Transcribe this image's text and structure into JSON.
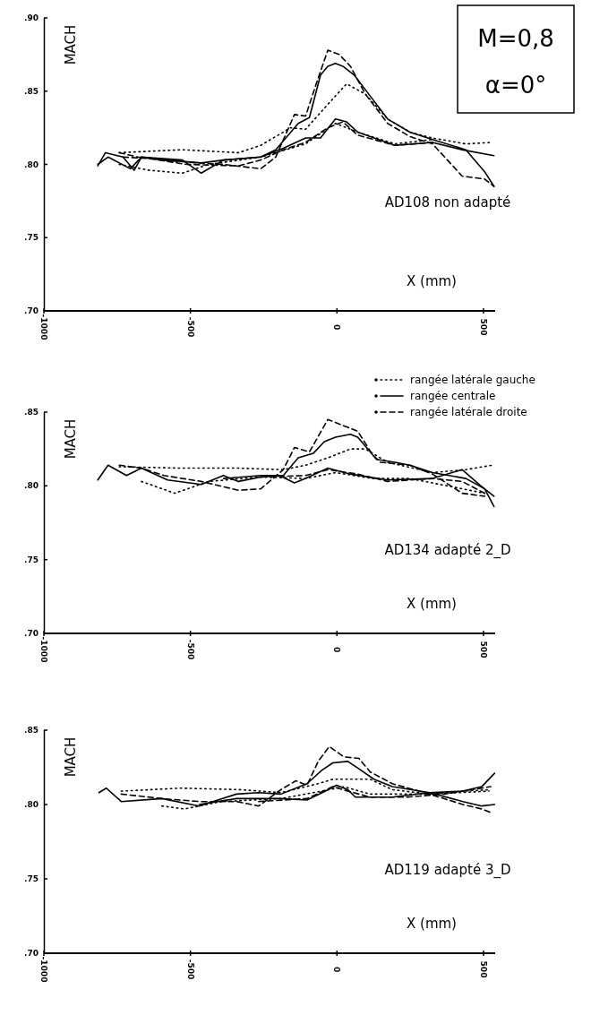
{
  "chart_data": [
    {
      "type": "line",
      "xlabel": "X (mm)",
      "ylabel": "MACH",
      "annotations": [
        "AD108  non adapté",
        "M=0,8",
        "α=0°"
      ],
      "xlim": [
        -1000,
        540
      ],
      "xticks": [
        -1000,
        -500,
        0,
        500
      ],
      "ylim": [
        0.7,
        0.9
      ],
      "yticks": [
        {
          "value": 0.7,
          "label": ".70"
        },
        {
          "value": 0.75,
          "label": ".75"
        },
        {
          "value": 0.8,
          "label": ".80"
        },
        {
          "value": 0.85,
          "label": ".85"
        },
        {
          "value": 0.9,
          "label": ".90"
        }
      ],
      "grid": false,
      "legend": false,
      "series": [
        {
          "color": "#000000",
          "line_style": "dotted",
          "x": [
            -743,
            -527,
            -336,
            -260,
            -158,
            -107,
            -31,
            33,
            97,
            173,
            249,
            326,
            440,
            529
          ],
          "values": [
            0.808,
            0.81,
            0.808,
            0.813,
            0.825,
            0.824,
            0.841,
            0.855,
            0.848,
            0.831,
            0.822,
            0.818,
            0.814,
            0.815
          ]
        },
        {
          "color": "#000000",
          "line_style": "solid",
          "x": [
            -816,
            -790,
            -730,
            -692,
            -667,
            -590,
            -463,
            -387,
            -260,
            -209,
            -132,
            -94,
            -56,
            -31,
            -5,
            20,
            59,
            97,
            173,
            249,
            326,
            440,
            504,
            536
          ],
          "values": [
            0.799,
            0.808,
            0.805,
            0.796,
            0.805,
            0.803,
            0.801,
            0.803,
            0.805,
            0.81,
            0.828,
            0.832,
            0.861,
            0.867,
            0.869,
            0.867,
            0.861,
            0.851,
            0.831,
            0.822,
            0.817,
            0.81,
            0.795,
            0.785
          ]
        },
        {
          "color": "#000000",
          "line_style": "dashed",
          "x": [
            -743,
            -679,
            -590,
            -476,
            -387,
            -260,
            -209,
            -145,
            -107,
            -69,
            -31,
            8,
            46,
            97,
            173,
            249,
            326,
            377,
            427,
            504,
            536
          ],
          "values": [
            0.808,
            0.805,
            0.803,
            0.801,
            0.8,
            0.797,
            0.805,
            0.834,
            0.833,
            0.856,
            0.878,
            0.875,
            0.867,
            0.848,
            0.828,
            0.819,
            0.814,
            0.803,
            0.792,
            0.79,
            0.785
          ]
        },
        {
          "color": "#000000",
          "line_style": "dotted",
          "x": [
            -743,
            -641,
            -527,
            -438,
            -260,
            -107,
            -5,
            71,
            198,
            326
          ],
          "values": [
            0.8,
            0.796,
            0.794,
            0.8,
            0.805,
            0.814,
            0.828,
            0.822,
            0.814,
            0.817
          ]
        },
        {
          "color": "#000000",
          "line_style": "solid",
          "x": [
            -816,
            -781,
            -705,
            -667,
            -527,
            -463,
            -387,
            -260,
            -183,
            -107,
            -56,
            -5,
            33,
            71,
            198,
            326,
            427,
            536
          ],
          "values": [
            0.8,
            0.805,
            0.797,
            0.805,
            0.803,
            0.794,
            0.803,
            0.805,
            0.811,
            0.818,
            0.818,
            0.831,
            0.829,
            0.822,
            0.813,
            0.815,
            0.81,
            0.806
          ]
        },
        {
          "color": "#000000",
          "line_style": "dashed",
          "x": [
            -730,
            -641,
            -514,
            -336,
            -260,
            -183,
            -107,
            -31,
            20,
            71,
            198,
            326
          ],
          "values": [
            0.805,
            0.804,
            0.8,
            0.799,
            0.803,
            0.81,
            0.815,
            0.825,
            0.829,
            0.82,
            0.813,
            0.815
          ]
        }
      ]
    },
    {
      "type": "line",
      "xlabel": "X (mm)",
      "ylabel": "MACH",
      "annotations": [
        "AD134  adapté 2_D"
      ],
      "xlim": [
        -1000,
        540
      ],
      "xticks": [
        -1000,
        -500,
        0,
        500
      ],
      "ylim": [
        0.7,
        0.85
      ],
      "yticks": [
        {
          "value": 0.7,
          "label": ".70"
        },
        {
          "value": 0.75,
          "label": ".75"
        },
        {
          "value": 0.8,
          "label": ".80"
        },
        {
          "value": 0.85,
          "label": ".85"
        }
      ],
      "grid": false,
      "legend": "top right",
      "series": [
        {
          "name": "rangée latérale gauche",
          "color": "#000000",
          "line_style": "dotted",
          "x": [
            -743,
            -527,
            -336,
            -183,
            -107,
            -31,
            46,
            97,
            173,
            326,
            440,
            529
          ],
          "values": [
            0.813,
            0.812,
            0.812,
            0.811,
            0.814,
            0.819,
            0.825,
            0.825,
            0.816,
            0.809,
            0.811,
            0.814
          ]
        },
        {
          "name": "rangée centrale",
          "color": "#000000",
          "line_style": "solid",
          "x": [
            -816,
            -781,
            -718,
            -667,
            -578,
            -463,
            -387,
            -336,
            -260,
            -183,
            -132,
            -81,
            -43,
            -5,
            46,
            71,
            135,
            198,
            249,
            326,
            440,
            504,
            536
          ],
          "values": [
            0.804,
            0.814,
            0.807,
            0.812,
            0.804,
            0.801,
            0.807,
            0.803,
            0.806,
            0.807,
            0.819,
            0.822,
            0.83,
            0.833,
            0.835,
            0.833,
            0.818,
            0.816,
            0.814,
            0.809,
            0.805,
            0.798,
            0.786
          ]
        },
        {
          "name": "rangée latérale droite",
          "color": "#000000",
          "line_style": "dashed",
          "x": [
            -743,
            -667,
            -590,
            -463,
            -336,
            -260,
            -183,
            -145,
            -94,
            -31,
            20,
            71,
            122,
            148,
            249,
            326,
            427,
            504
          ],
          "values": [
            0.814,
            0.812,
            0.807,
            0.803,
            0.797,
            0.798,
            0.811,
            0.826,
            0.823,
            0.845,
            0.841,
            0.837,
            0.821,
            0.816,
            0.814,
            0.808,
            0.795,
            0.793
          ]
        },
        {
          "color": "#000000",
          "line_style": "dotted",
          "x": [
            -667,
            -553,
            -438,
            -260,
            -107,
            -5,
            122,
            249,
            377,
            504
          ],
          "values": [
            0.803,
            0.795,
            0.803,
            0.806,
            0.805,
            0.809,
            0.805,
            0.805,
            0.8,
            0.795
          ]
        },
        {
          "color": "#000000",
          "line_style": "solid",
          "x": [
            -387,
            -260,
            -196,
            -145,
            -107,
            -31,
            46,
            173,
            326,
            427,
            491,
            536
          ],
          "values": [
            0.805,
            0.807,
            0.807,
            0.802,
            0.805,
            0.812,
            0.808,
            0.804,
            0.805,
            0.811,
            0.8,
            0.793
          ]
        },
        {
          "color": "#000000",
          "line_style": "dashed",
          "x": [
            -260,
            -107,
            -31,
            71,
            173,
            326,
            427,
            504
          ],
          "values": [
            0.806,
            0.807,
            0.811,
            0.808,
            0.803,
            0.805,
            0.803,
            0.795
          ]
        }
      ]
    },
    {
      "type": "line",
      "xlabel": "X (mm)",
      "ylabel": "MACH",
      "annotations": [
        "AD119  adapté 3_D"
      ],
      "xlim": [
        -1000,
        540
      ],
      "xticks": [
        -1000,
        -500,
        0,
        500
      ],
      "ylim": [
        0.7,
        0.85
      ],
      "yticks": [
        {
          "value": 0.7,
          "label": ".70"
        },
        {
          "value": 0.75,
          "label": ".75"
        },
        {
          "value": 0.8,
          "label": ".80"
        },
        {
          "value": 0.85,
          "label": ".85"
        }
      ],
      "grid": false,
      "legend": false,
      "series": [
        {
          "color": "#000000",
          "line_style": "dotted",
          "x": [
            -736,
            -533,
            -331,
            -191,
            -64,
            -14,
            37,
            113,
            189,
            316,
            430,
            525
          ],
          "values": [
            0.809,
            0.811,
            0.81,
            0.808,
            0.814,
            0.817,
            0.817,
            0.817,
            0.81,
            0.807,
            0.809,
            0.81
          ]
        },
        {
          "color": "#000000",
          "line_style": "solid",
          "x": [
            -812,
            -787,
            -736,
            -597,
            -470,
            -343,
            -267,
            -191,
            -102,
            -52,
            -14,
            37,
            75,
            126,
            189,
            316,
            430,
            494,
            538
          ],
          "values": [
            0.808,
            0.811,
            0.802,
            0.804,
            0.799,
            0.807,
            0.808,
            0.807,
            0.814,
            0.823,
            0.828,
            0.829,
            0.824,
            0.817,
            0.812,
            0.808,
            0.802,
            0.799,
            0.8
          ]
        },
        {
          "color": "#000000",
          "line_style": "dashed",
          "x": [
            -736,
            -597,
            -470,
            -343,
            -267,
            -191,
            -140,
            -102,
            -64,
            -26,
            24,
            75,
            113,
            189,
            316,
            430,
            494,
            532
          ],
          "values": [
            0.807,
            0.804,
            0.802,
            0.802,
            0.799,
            0.81,
            0.816,
            0.813,
            0.829,
            0.839,
            0.832,
            0.831,
            0.822,
            0.814,
            0.807,
            0.8,
            0.797,
            0.794
          ]
        },
        {
          "color": "#000000",
          "line_style": "dotted",
          "x": [
            -597,
            -521,
            -394,
            -191,
            -52,
            24,
            113,
            316,
            519
          ],
          "values": [
            0.799,
            0.797,
            0.802,
            0.804,
            0.809,
            0.812,
            0.807,
            0.807,
            0.809
          ]
        },
        {
          "color": "#000000",
          "line_style": "solid",
          "x": [
            -470,
            -343,
            -191,
            -102,
            -39,
            -1,
            37,
            63,
            189,
            316,
            430,
            494,
            538
          ],
          "values": [
            0.8,
            0.804,
            0.804,
            0.803,
            0.809,
            0.813,
            0.81,
            0.805,
            0.805,
            0.808,
            0.809,
            0.812,
            0.821
          ]
        },
        {
          "color": "#000000",
          "line_style": "dashed",
          "x": [
            -267,
            -102,
            -14,
            37,
            113,
            240,
            367,
            525
          ],
          "values": [
            0.802,
            0.804,
            0.812,
            0.809,
            0.805,
            0.805,
            0.807,
            0.812
          ]
        }
      ]
    }
  ]
}
